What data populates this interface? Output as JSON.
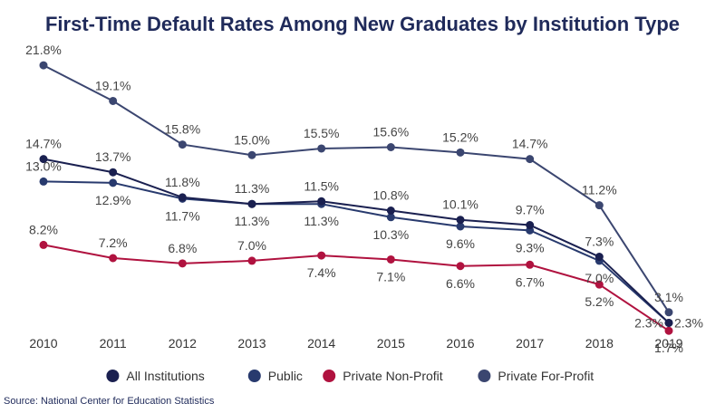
{
  "chart_data": {
    "type": "line",
    "title": "First-Time Default Rates Among New Graduates by Institution Type",
    "xlabel": "",
    "ylabel": "",
    "categories": [
      "2010",
      "2011",
      "2012",
      "2013",
      "2014",
      "2015",
      "2016",
      "2017",
      "2018",
      "2019"
    ],
    "ylim": [
      0,
      24
    ],
    "grid": false,
    "legend_position": "bottom",
    "series": [
      {
        "name": "All Institutions",
        "color": "#1a2050",
        "values": [
          14.7,
          13.7,
          11.8,
          11.3,
          11.5,
          10.8,
          10.1,
          9.7,
          7.3,
          2.3
        ],
        "labels": [
          "14.7%",
          "13.7%",
          "11.8%",
          "11.3%",
          "11.5%",
          "10.8%",
          "10.1%",
          "9.7%",
          "7.3%",
          "2.3%"
        ]
      },
      {
        "name": "Public",
        "color": "#283a6e",
        "values": [
          13.0,
          12.9,
          11.7,
          11.3,
          11.3,
          10.3,
          9.6,
          9.3,
          7.0,
          2.3
        ],
        "labels": [
          "13.0%",
          "12.9%",
          "11.7%",
          "11.3%",
          "11.3%",
          "10.3%",
          "9.6%",
          "9.3%",
          "7.0%",
          "2.3%"
        ]
      },
      {
        "name": "Private Non-Profit",
        "color": "#b0123f",
        "values": [
          8.2,
          7.2,
          6.8,
          7.0,
          7.4,
          7.1,
          6.6,
          6.7,
          5.2,
          1.7
        ],
        "labels": [
          "8.2%",
          "7.2%",
          "6.8%",
          "7.0%",
          "7.4%",
          "7.1%",
          "6.6%",
          "6.7%",
          "5.2%",
          "1.7%"
        ]
      },
      {
        "name": "Private For-Profit",
        "color": "#3b4670",
        "values": [
          21.8,
          19.1,
          15.8,
          15.0,
          15.5,
          15.6,
          15.2,
          14.7,
          11.2,
          3.1
        ],
        "labels": [
          "21.8%",
          "19.1%",
          "15.8%",
          "15.0%",
          "15.5%",
          "15.6%",
          "15.2%",
          "14.7%",
          "11.2%",
          "3.1%"
        ]
      }
    ],
    "source": "Source: National Center for Education Statistics"
  }
}
